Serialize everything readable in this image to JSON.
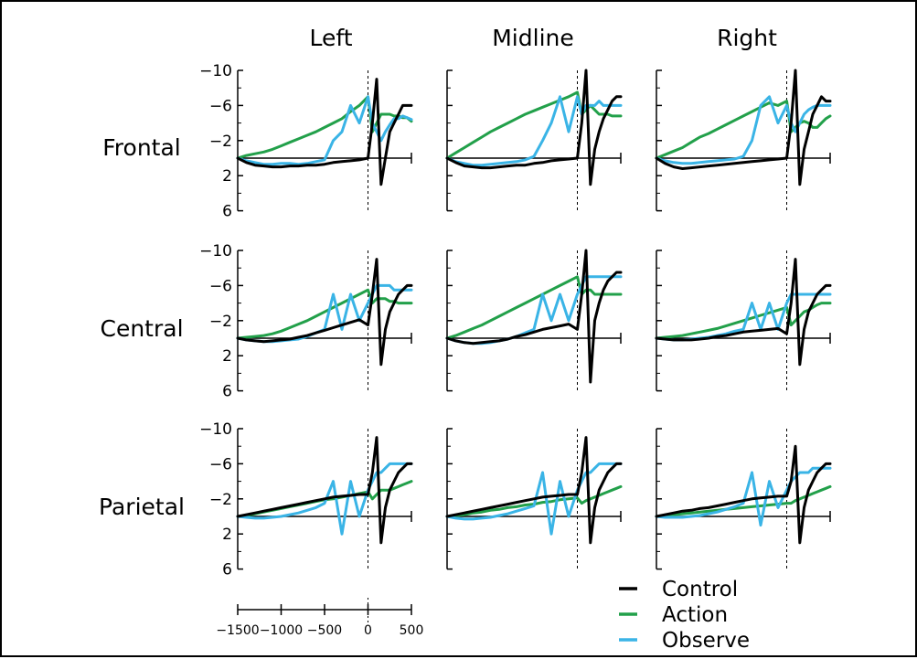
{
  "chart_data": {
    "type": "line",
    "columns": [
      "Left",
      "Midline",
      "Right"
    ],
    "rows": [
      "Frontal",
      "Central",
      "Parietal"
    ],
    "x_ticks": [
      "−1500",
      "−1000",
      "−500",
      "0",
      "500"
    ],
    "x_range": [
      -1500,
      500
    ],
    "y_ticks": [
      "−10",
      "−6",
      "−2",
      "2",
      "6"
    ],
    "y_range": [
      -10,
      6
    ],
    "y_inverted": true,
    "colors": {
      "Control": "#000000",
      "Action": "#22a04a",
      "Observe": "#3ab4e6"
    },
    "legend": [
      {
        "label": "Control",
        "series": "Control"
      },
      {
        "label": "Action",
        "series": "Action"
      },
      {
        "label": "Observe",
        "series": "Observe"
      }
    ],
    "series_x": [
      -1500,
      -1400,
      -1300,
      -1200,
      -1100,
      -1000,
      -900,
      -800,
      -700,
      -600,
      -500,
      -400,
      -300,
      -200,
      -100,
      0,
      50,
      100,
      150,
      200,
      250,
      300,
      350,
      400,
      450,
      500
    ],
    "panels": [
      {
        "row": "Frontal",
        "column": "Left",
        "Control": [
          0,
          0.5,
          0.8,
          0.9,
          1.0,
          1.0,
          0.9,
          0.9,
          0.8,
          0.8,
          0.7,
          0.5,
          0.4,
          0.3,
          0.2,
          0,
          -4,
          -9,
          3,
          0,
          -3,
          -4,
          -5,
          -6,
          -6,
          -6
        ],
        "Action": [
          0,
          -0.3,
          -0.5,
          -0.7,
          -1.0,
          -1.4,
          -1.8,
          -2.2,
          -2.6,
          -3.0,
          -3.5,
          -4.0,
          -4.5,
          -5.3,
          -6.0,
          -7.0,
          -3,
          -4,
          -5,
          -5,
          -5,
          -4.8,
          -4.8,
          -4.6,
          -4.6,
          -4.2
        ],
        "Observe": [
          0,
          0.3,
          0.5,
          0.7,
          0.7,
          0.6,
          0.6,
          0.7,
          0.6,
          0.4,
          0.2,
          -2,
          -3,
          -6,
          -4,
          -7,
          -4,
          -3,
          -2,
          -3,
          -3.8,
          -4.5,
          -4.5,
          -4.8,
          -4.6,
          -4.4
        ]
      },
      {
        "row": "Frontal",
        "column": "Midline",
        "Control": [
          0,
          0.5,
          0.9,
          1.0,
          1.1,
          1.1,
          1.0,
          0.9,
          0.8,
          0.8,
          0.6,
          0.5,
          0.3,
          0.2,
          0.1,
          0,
          -4,
          -10,
          3,
          -1,
          -3,
          -4.5,
          -5.5,
          -6.5,
          -7,
          -7
        ],
        "Action": [
          0,
          -0.6,
          -1.2,
          -1.8,
          -2.4,
          -3.0,
          -3.5,
          -4.0,
          -4.5,
          -5.0,
          -5.4,
          -5.8,
          -6.2,
          -6.6,
          -7.0,
          -7.5,
          -5,
          -5.5,
          -6.0,
          -5.5,
          -5,
          -5,
          -5,
          -4.8,
          -4.8,
          -4.8
        ],
        "Observe": [
          0,
          0.4,
          0.6,
          0.8,
          0.8,
          0.7,
          0.6,
          0.5,
          0.4,
          0.2,
          -0.2,
          -2,
          -4,
          -7,
          -3,
          -7,
          -5,
          -6,
          -6,
          -6,
          -6.5,
          -6,
          -6,
          -6,
          -6,
          -6
        ]
      },
      {
        "row": "Frontal",
        "column": "Right",
        "Control": [
          0,
          0.6,
          1.0,
          1.2,
          1.1,
          1.0,
          0.9,
          0.8,
          0.7,
          0.6,
          0.5,
          0.4,
          0.3,
          0.2,
          0.1,
          0,
          -4,
          -10,
          3,
          -1,
          -3,
          -5,
          -6,
          -7,
          -6.5,
          -6.5
        ],
        "Action": [
          0,
          -0.4,
          -0.8,
          -1.2,
          -1.8,
          -2.4,
          -2.8,
          -3.3,
          -3.8,
          -4.3,
          -4.8,
          -5.3,
          -5.8,
          -6.3,
          -6.0,
          -6.5,
          -3,
          -3.5,
          -4,
          -4.2,
          -4,
          -3.5,
          -3.5,
          -4,
          -4.5,
          -4.8
        ],
        "Observe": [
          0,
          0.3,
          0.5,
          0.6,
          0.6,
          0.5,
          0.4,
          0.3,
          0.2,
          0.1,
          -0.2,
          -2,
          -6,
          -7,
          -4,
          -6,
          -4,
          -3,
          -4,
          -5,
          -5.5,
          -5.8,
          -6,
          -6,
          -6,
          -6
        ]
      },
      {
        "row": "Central",
        "column": "Left",
        "Control": [
          0,
          0.2,
          0.3,
          0.4,
          0.3,
          0.2,
          0.1,
          -0.1,
          -0.3,
          -0.6,
          -0.9,
          -1.2,
          -1.5,
          -1.8,
          -2.1,
          -1.5,
          -5,
          -9,
          3,
          -1,
          -3,
          -4,
          -5,
          -5.5,
          -6,
          -6
        ],
        "Action": [
          0,
          -0.1,
          -0.2,
          -0.3,
          -0.5,
          -0.8,
          -1.2,
          -1.6,
          -2.0,
          -2.5,
          -3.0,
          -3.5,
          -4.0,
          -4.5,
          -5.0,
          -5.5,
          -4,
          -4.5,
          -4.5,
          -4.5,
          -4.2,
          -4.2,
          -4.0,
          -4.0,
          -4.0,
          -4.0
        ],
        "Observe": [
          0,
          0.2,
          0.3,
          0.4,
          0.4,
          0.3,
          0.2,
          0.1,
          -0.2,
          -0.6,
          -1,
          -5,
          -1,
          -5,
          -2,
          -4,
          -5,
          -6,
          -6,
          -6,
          -6,
          -5.5,
          -5.5,
          -5.5,
          -5.5,
          -5.5
        ]
      },
      {
        "row": "Central",
        "column": "Midline",
        "Control": [
          0,
          0.3,
          0.5,
          0.6,
          0.5,
          0.4,
          0.3,
          0.1,
          -0.2,
          -0.4,
          -0.7,
          -1.0,
          -1.2,
          -1.4,
          -1.6,
          -1.0,
          -5,
          -10,
          5,
          -2,
          -4,
          -5.5,
          -6.5,
          -7,
          -7.5,
          -7.5
        ],
        "Action": [
          0,
          -0.3,
          -0.7,
          -1.1,
          -1.5,
          -2.0,
          -2.5,
          -3.0,
          -3.5,
          -4.0,
          -4.5,
          -5.0,
          -5.5,
          -6.0,
          -6.5,
          -7.0,
          -5,
          -5.5,
          -5.5,
          -5,
          -5,
          -5,
          -5,
          -5,
          -5,
          -5
        ],
        "Observe": [
          0,
          0.3,
          0.5,
          0.6,
          0.6,
          0.5,
          0.3,
          0.1,
          -0.2,
          -0.6,
          -1,
          -5,
          -2,
          -5,
          -2,
          -5,
          -6,
          -7,
          -7,
          -7,
          -7,
          -7,
          -7,
          -7,
          -7,
          -7
        ]
      },
      {
        "row": "Central",
        "column": "Right",
        "Control": [
          0,
          0.1,
          0.2,
          0.2,
          0.2,
          0.1,
          0.0,
          -0.2,
          -0.3,
          -0.5,
          -0.7,
          -0.8,
          -0.9,
          -1.0,
          -1.1,
          -0.5,
          -4,
          -9,
          3,
          -1,
          -3,
          -4,
          -5,
          -5.5,
          -6,
          -6
        ],
        "Action": [
          0,
          -0.1,
          -0.2,
          -0.3,
          -0.5,
          -0.7,
          -0.9,
          -1.1,
          -1.4,
          -1.7,
          -2.0,
          -2.3,
          -2.6,
          -2.9,
          -3.2,
          -3.5,
          -1.5,
          -2.0,
          -2.5,
          -3.0,
          -3.2,
          -3.5,
          -3.8,
          -4.0,
          -4.0,
          -4.0
        ],
        "Observe": [
          0,
          0.1,
          0.2,
          0.2,
          0.1,
          0.0,
          -0.1,
          -0.3,
          -0.5,
          -0.8,
          -1,
          -4,
          -1,
          -4,
          -1,
          -4,
          -5,
          -5,
          -5,
          -5,
          -5,
          -5,
          -5,
          -5,
          -5,
          -5
        ]
      },
      {
        "row": "Parietal",
        "column": "Left",
        "Control": [
          0,
          -0.2,
          -0.4,
          -0.6,
          -0.8,
          -1.0,
          -1.2,
          -1.4,
          -1.6,
          -1.8,
          -2.0,
          -2.2,
          -2.3,
          -2.4,
          -2.5,
          -2.5,
          -5,
          -9,
          3,
          -1,
          -3,
          -4,
          -5,
          -5.5,
          -6,
          -6
        ],
        "Action": [
          0,
          -0.1,
          -0.3,
          -0.5,
          -0.7,
          -0.9,
          -1.1,
          -1.3,
          -1.5,
          -1.7,
          -1.9,
          -2.0,
          -2.2,
          -2.4,
          -2.6,
          -2.8,
          -2,
          -2.5,
          -3,
          -3,
          -3,
          -3.2,
          -3.4,
          -3.6,
          -3.8,
          -4.0
        ],
        "Observe": [
          0,
          0.1,
          0.2,
          0.2,
          0.1,
          0.0,
          -0.2,
          -0.4,
          -0.7,
          -1.0,
          -1.5,
          -4,
          2,
          -4,
          0,
          -3,
          -4,
          -5,
          -5,
          -5.5,
          -6,
          -6,
          -6,
          -6,
          -6,
          -6
        ]
      },
      {
        "row": "Parietal",
        "column": "Midline",
        "Control": [
          0,
          -0.2,
          -0.4,
          -0.6,
          -0.8,
          -1.0,
          -1.2,
          -1.4,
          -1.6,
          -1.8,
          -2.0,
          -2.2,
          -2.3,
          -2.4,
          -2.5,
          -2.5,
          -5,
          -9,
          3,
          -1,
          -3,
          -4,
          -5,
          -5.5,
          -6,
          -6
        ],
        "Action": [
          0,
          -0.1,
          -0.2,
          -0.4,
          -0.5,
          -0.7,
          -0.8,
          -1.0,
          -1.1,
          -1.3,
          -1.4,
          -1.6,
          -1.7,
          -1.9,
          -2.0,
          -2.1,
          -1.5,
          -1.8,
          -2.0,
          -2.2,
          -2.4,
          -2.6,
          -2.8,
          -3.0,
          -3.2,
          -3.4
        ],
        "Observe": [
          0,
          0.2,
          0.3,
          0.3,
          0.2,
          0.1,
          -0.1,
          -0.3,
          -0.6,
          -0.9,
          -1.2,
          -5,
          2,
          -4,
          0,
          -3,
          -4,
          -5,
          -5,
          -5.5,
          -6,
          -6,
          -6,
          -6,
          -6,
          -6
        ]
      },
      {
        "row": "Parietal",
        "column": "Right",
        "Control": [
          0,
          -0.2,
          -0.4,
          -0.6,
          -0.7,
          -0.9,
          -1.0,
          -1.2,
          -1.4,
          -1.6,
          -1.8,
          -2.0,
          -2.1,
          -2.2,
          -2.3,
          -2.3,
          -4,
          -8,
          3,
          -1,
          -3,
          -4,
          -5,
          -5.5,
          -6,
          -6
        ],
        "Action": [
          0,
          -0.1,
          -0.2,
          -0.3,
          -0.4,
          -0.5,
          -0.6,
          -0.7,
          -0.8,
          -0.9,
          -1.0,
          -1.1,
          -1.2,
          -1.3,
          -1.4,
          -1.5,
          -1.5,
          -1.8,
          -2.0,
          -2.2,
          -2.4,
          -2.6,
          -2.8,
          -3.0,
          -3.2,
          -3.4
        ],
        "Observe": [
          0,
          0.1,
          0.1,
          0.1,
          0.0,
          -0.1,
          -0.3,
          -0.5,
          -0.8,
          -1.1,
          -1.5,
          -5,
          1,
          -4,
          -1,
          -3,
          -4,
          -4.5,
          -5,
          -5,
          -5,
          -5.5,
          -5.5,
          -5.5,
          -5.5,
          -5.5
        ]
      }
    ]
  }
}
